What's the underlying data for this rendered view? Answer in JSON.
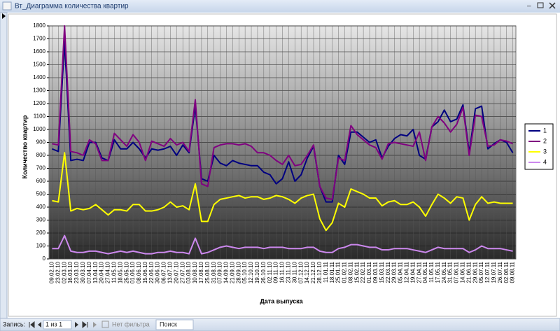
{
  "window": {
    "title": "Вт_Диаграмма количества квартир"
  },
  "status_bar": {
    "record_label": "Запись:",
    "position": "1 из 1",
    "filter": "Нет фильтра",
    "search": "Поиск"
  },
  "chart_data": {
    "type": "line",
    "y_label": "Количество квартир",
    "x_label": "Дата выпуска",
    "categories": [
      "09.02.10",
      "23.02.10",
      "02.03.10",
      "16.03.10",
      "23.03.10",
      "30.03.10",
      "07.04.10",
      "13.04.10",
      "20.04.10",
      "27.04.10",
      "11.05.10",
      "18.05.10",
      "25.05.10",
      "01.06.10",
      "08.06.10",
      "15.06.10",
      "22.06.10",
      "30.06.10",
      "06.07.10",
      "13.07.10",
      "20.07.10",
      "27.07.10",
      "03.08.10",
      "10.08.10",
      "17.08.10",
      "25.08.10",
      "31.08.10",
      "07.09.10",
      "14.09.10",
      "21.09.10",
      "28.09.10",
      "05.10.10",
      "12.10.10",
      "19.10.10",
      "26.10.10",
      "02.11.10",
      "09.11.10",
      "16.11.10",
      "23.11.10",
      "30.11.10",
      "07.12.10",
      "14.12.10",
      "21.12.10",
      "28.12.10",
      "11.01.11",
      "18.01.11",
      "25.01.11",
      "01.02.11",
      "08.02.11",
      "15.02.11",
      "22.02.11",
      "01.03.11",
      "09.03.11",
      "15.03.11",
      "22.03.11",
      "29.03.11",
      "05.04.11",
      "12.04.11",
      "19.04.11",
      "27.04.11",
      "04.05.11",
      "11.05.11",
      "17.05.11",
      "24.05.11",
      "31.05.11",
      "07.06.11",
      "14.06.11",
      "21.06.11",
      "29.06.11",
      "05.07.11",
      "12.07.11",
      "19.07.11",
      "26.07.11",
      "02.08.11",
      "09.08.11"
    ],
    "series": [
      {
        "name": "1",
        "color": "#000080",
        "values": [
          850,
          830,
          1680,
          760,
          770,
          760,
          900,
          900,
          780,
          760,
          920,
          850,
          850,
          900,
          850,
          780,
          850,
          840,
          850,
          870,
          800,
          880,
          820,
          1180,
          620,
          600,
          800,
          740,
          720,
          760,
          740,
          730,
          720,
          720,
          670,
          650,
          580,
          620,
          750,
          600,
          650,
          780,
          870,
          560,
          440,
          440,
          800,
          730,
          980,
          980,
          940,
          900,
          920,
          780,
          870,
          930,
          960,
          950,
          1000,
          800,
          770,
          1020,
          1060,
          1150,
          1060,
          1080,
          1190,
          820,
          1160,
          1180,
          850,
          890,
          920,
          900,
          820
        ]
      },
      {
        "name": "2",
        "color": "#800080",
        "values": [
          890,
          880,
          1800,
          830,
          820,
          800,
          920,
          890,
          760,
          760,
          970,
          920,
          870,
          960,
          900,
          760,
          910,
          890,
          870,
          930,
          880,
          900,
          830,
          1230,
          580,
          560,
          860,
          880,
          890,
          890,
          880,
          890,
          870,
          820,
          820,
          800,
          760,
          730,
          800,
          720,
          730,
          800,
          880,
          560,
          470,
          460,
          780,
          760,
          1030,
          960,
          920,
          880,
          860,
          770,
          890,
          900,
          890,
          880,
          870,
          980,
          760,
          1020,
          1100,
          1050,
          980,
          1040,
          1170,
          800,
          1110,
          1100,
          870,
          880,
          920,
          910,
          890
        ]
      },
      {
        "name": "3",
        "color": "#ffff00",
        "values": [
          450,
          440,
          820,
          370,
          390,
          380,
          390,
          420,
          380,
          340,
          380,
          380,
          370,
          420,
          420,
          370,
          370,
          380,
          400,
          440,
          400,
          410,
          380,
          580,
          290,
          290,
          420,
          460,
          470,
          480,
          490,
          470,
          480,
          480,
          460,
          470,
          490,
          480,
          460,
          430,
          470,
          490,
          500,
          310,
          220,
          280,
          430,
          400,
          540,
          520,
          500,
          470,
          470,
          410,
          440,
          450,
          420,
          420,
          440,
          400,
          330,
          420,
          500,
          470,
          430,
          480,
          470,
          300,
          420,
          480,
          430,
          440,
          430,
          430,
          430
        ]
      },
      {
        "name": "4",
        "color": "#cc88ee",
        "values": [
          80,
          80,
          180,
          60,
          50,
          50,
          60,
          60,
          50,
          40,
          50,
          60,
          50,
          60,
          50,
          40,
          40,
          50,
          50,
          60,
          50,
          50,
          40,
          160,
          40,
          50,
          70,
          90,
          100,
          90,
          80,
          90,
          90,
          90,
          80,
          90,
          90,
          90,
          80,
          80,
          80,
          90,
          90,
          60,
          50,
          50,
          80,
          90,
          110,
          110,
          100,
          90,
          90,
          70,
          70,
          80,
          80,
          80,
          70,
          60,
          50,
          70,
          90,
          80,
          80,
          80,
          80,
          50,
          70,
          100,
          80,
          80,
          80,
          70,
          60
        ]
      }
    ],
    "ylim": [
      0,
      1800
    ],
    "yticks": [
      0,
      100,
      200,
      300,
      400,
      500,
      600,
      700,
      800,
      900,
      1000,
      1100,
      1200,
      1300,
      1400,
      1500,
      1600,
      1700,
      1800
    ],
    "grid": true,
    "legend": "right"
  }
}
